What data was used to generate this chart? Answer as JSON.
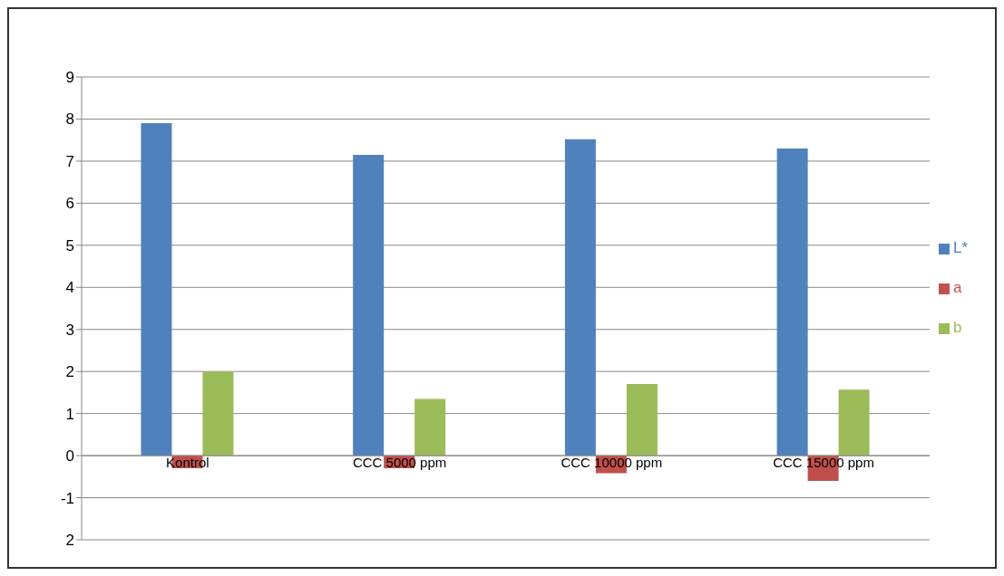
{
  "chart_data": {
    "type": "bar",
    "categories": [
      "Kontrol",
      "CCC 5000 ppm",
      "CCC 10000 ppm",
      "CCC 15000 ppm"
    ],
    "series": [
      {
        "name": "L*",
        "color": "#4f81bd",
        "values": [
          7.9,
          7.15,
          7.52,
          7.3
        ]
      },
      {
        "name": "a",
        "color": "#c0504d",
        "values": [
          -0.3,
          -0.3,
          -0.42,
          -0.6
        ]
      },
      {
        "name": "b",
        "color": "#9bbb59",
        "values": [
          2.0,
          1.35,
          1.7,
          1.57
        ]
      }
    ],
    "ylim": [
      -2,
      9
    ],
    "yticks": [
      {
        "value": -2,
        "label": "2"
      },
      -1,
      0,
      1,
      2,
      3,
      4,
      5,
      6,
      7,
      8,
      9
    ],
    "grid": "y",
    "legend": "right"
  }
}
